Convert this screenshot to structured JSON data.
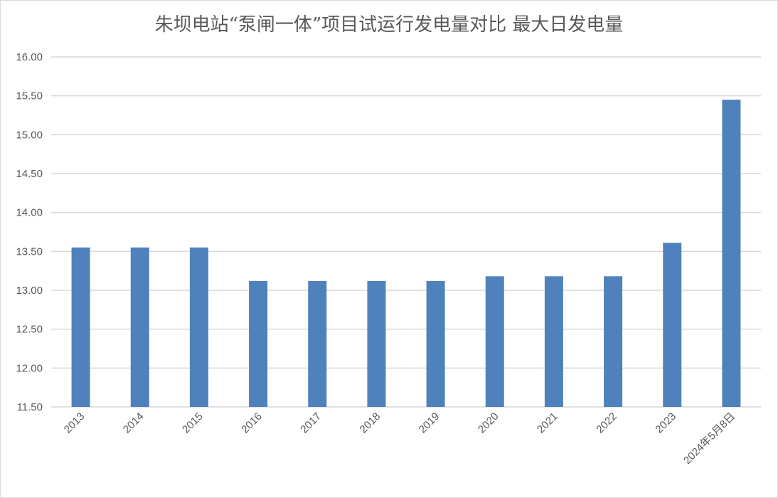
{
  "chart_data": {
    "type": "bar",
    "title": "朱坝电站“泵闸一体”项目试运行发电量对比 最大日发电量",
    "xlabel": "",
    "ylabel": "",
    "categories": [
      "2013",
      "2014",
      "2015",
      "2016",
      "2017",
      "2018",
      "2019",
      "2020",
      "2021",
      "2022",
      "2023",
      "2024年5月8日"
    ],
    "values": [
      13.55,
      13.55,
      13.55,
      13.12,
      13.12,
      13.12,
      13.12,
      13.18,
      13.18,
      13.18,
      13.61,
      15.45
    ],
    "ylim": [
      11.5,
      16.0
    ],
    "yticks": [
      "11.50",
      "12.00",
      "12.50",
      "13.00",
      "13.50",
      "14.00",
      "14.50",
      "15.00",
      "15.50",
      "16.00"
    ],
    "grid": true,
    "legend": "none",
    "bar_color": "#4f81bd"
  }
}
